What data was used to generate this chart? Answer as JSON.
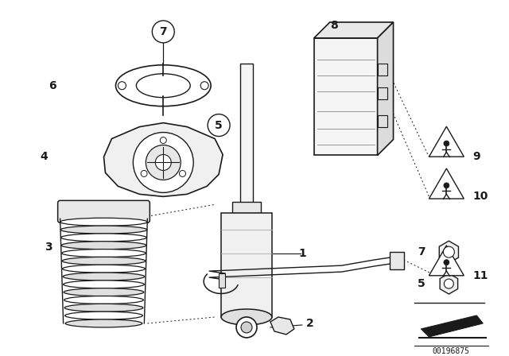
{
  "bg_color": "#ffffff",
  "line_color": "#1a1a1a",
  "image_id": "00196875",
  "figsize": [
    6.4,
    4.48
  ],
  "dpi": 100
}
